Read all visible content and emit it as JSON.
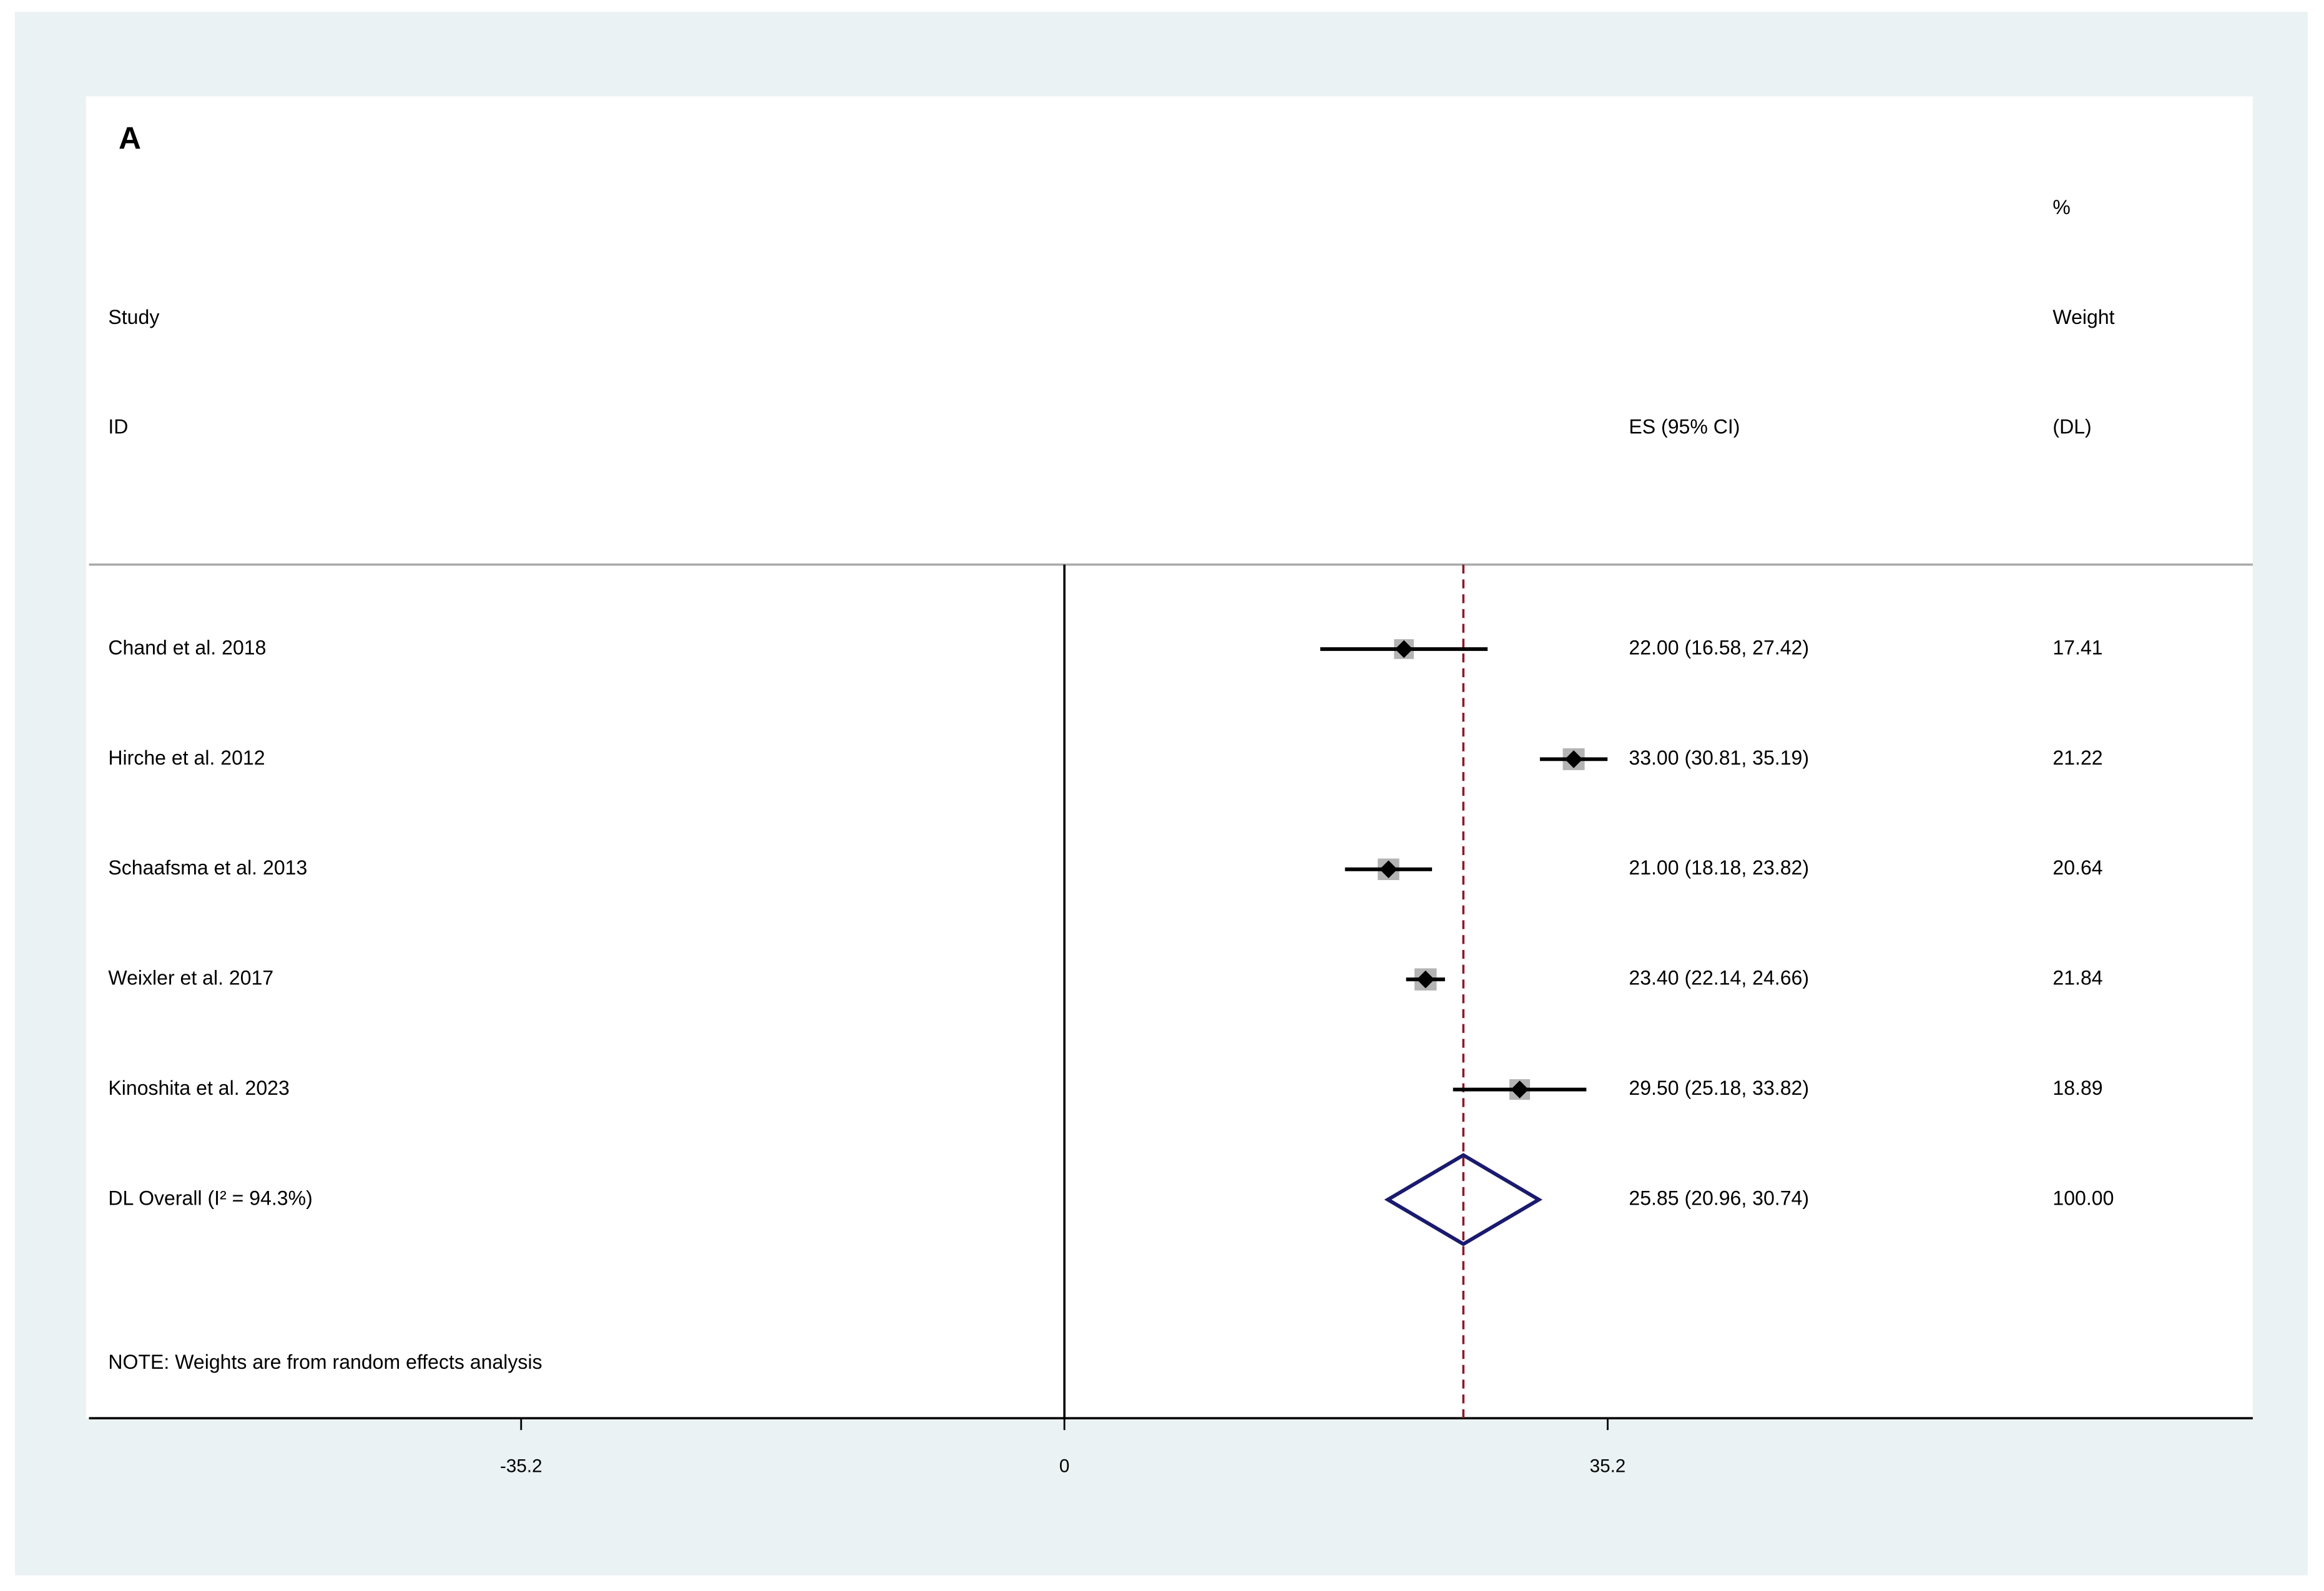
{
  "chart_data": {
    "type": "forest",
    "panel_label": "A",
    "headers": {
      "study_line1": "Study",
      "study_line2": "ID",
      "es_header": "ES (95% CI)",
      "weight_line1": "%",
      "weight_line2": "Weight",
      "weight_line3": "(DL)"
    },
    "categories": [
      "Chand et al. 2018",
      "Hirche et al. 2012",
      "Schaafsma et al. 2013",
      "Weixler et al. 2017",
      "Kinoshita et al. 2023"
    ],
    "values": [
      22.0,
      33.0,
      21.0,
      23.4,
      29.5
    ],
    "lower": [
      16.58,
      30.81,
      18.18,
      22.14,
      25.18
    ],
    "upper": [
      27.42,
      35.19,
      23.82,
      24.66,
      33.82
    ],
    "value_labels": [
      "22.00 (16.58, 27.42)",
      "33.00 (30.81, 35.19)",
      "21.00 (18.18, 23.82)",
      "23.40 (22.14, 24.66)",
      "29.50 (25.18, 33.82)"
    ],
    "weights": [
      17.41,
      21.22,
      20.64,
      21.84,
      18.89
    ],
    "weight_labels": [
      "17.41",
      "21.22",
      "20.64",
      "21.84",
      "18.89"
    ],
    "overall": {
      "label": "DL Overall  (I² = 94.3%)",
      "value": 25.85,
      "lower": 20.96,
      "upper": 30.74,
      "value_label": "25.85 (20.96, 30.74)",
      "weight": 100,
      "weight_label": "100.00"
    },
    "note": "NOTE: Weights are from random effects analysis",
    "xlim": [
      -63.2,
      77.0
    ],
    "xticks": [
      -35.2,
      0,
      35.2
    ],
    "null_line": 0,
    "point_color": "#000000",
    "box_color": "#b4b4b4",
    "diamond_color": "#1a1a6e",
    "overall_line_color": "#8b1a2a"
  }
}
